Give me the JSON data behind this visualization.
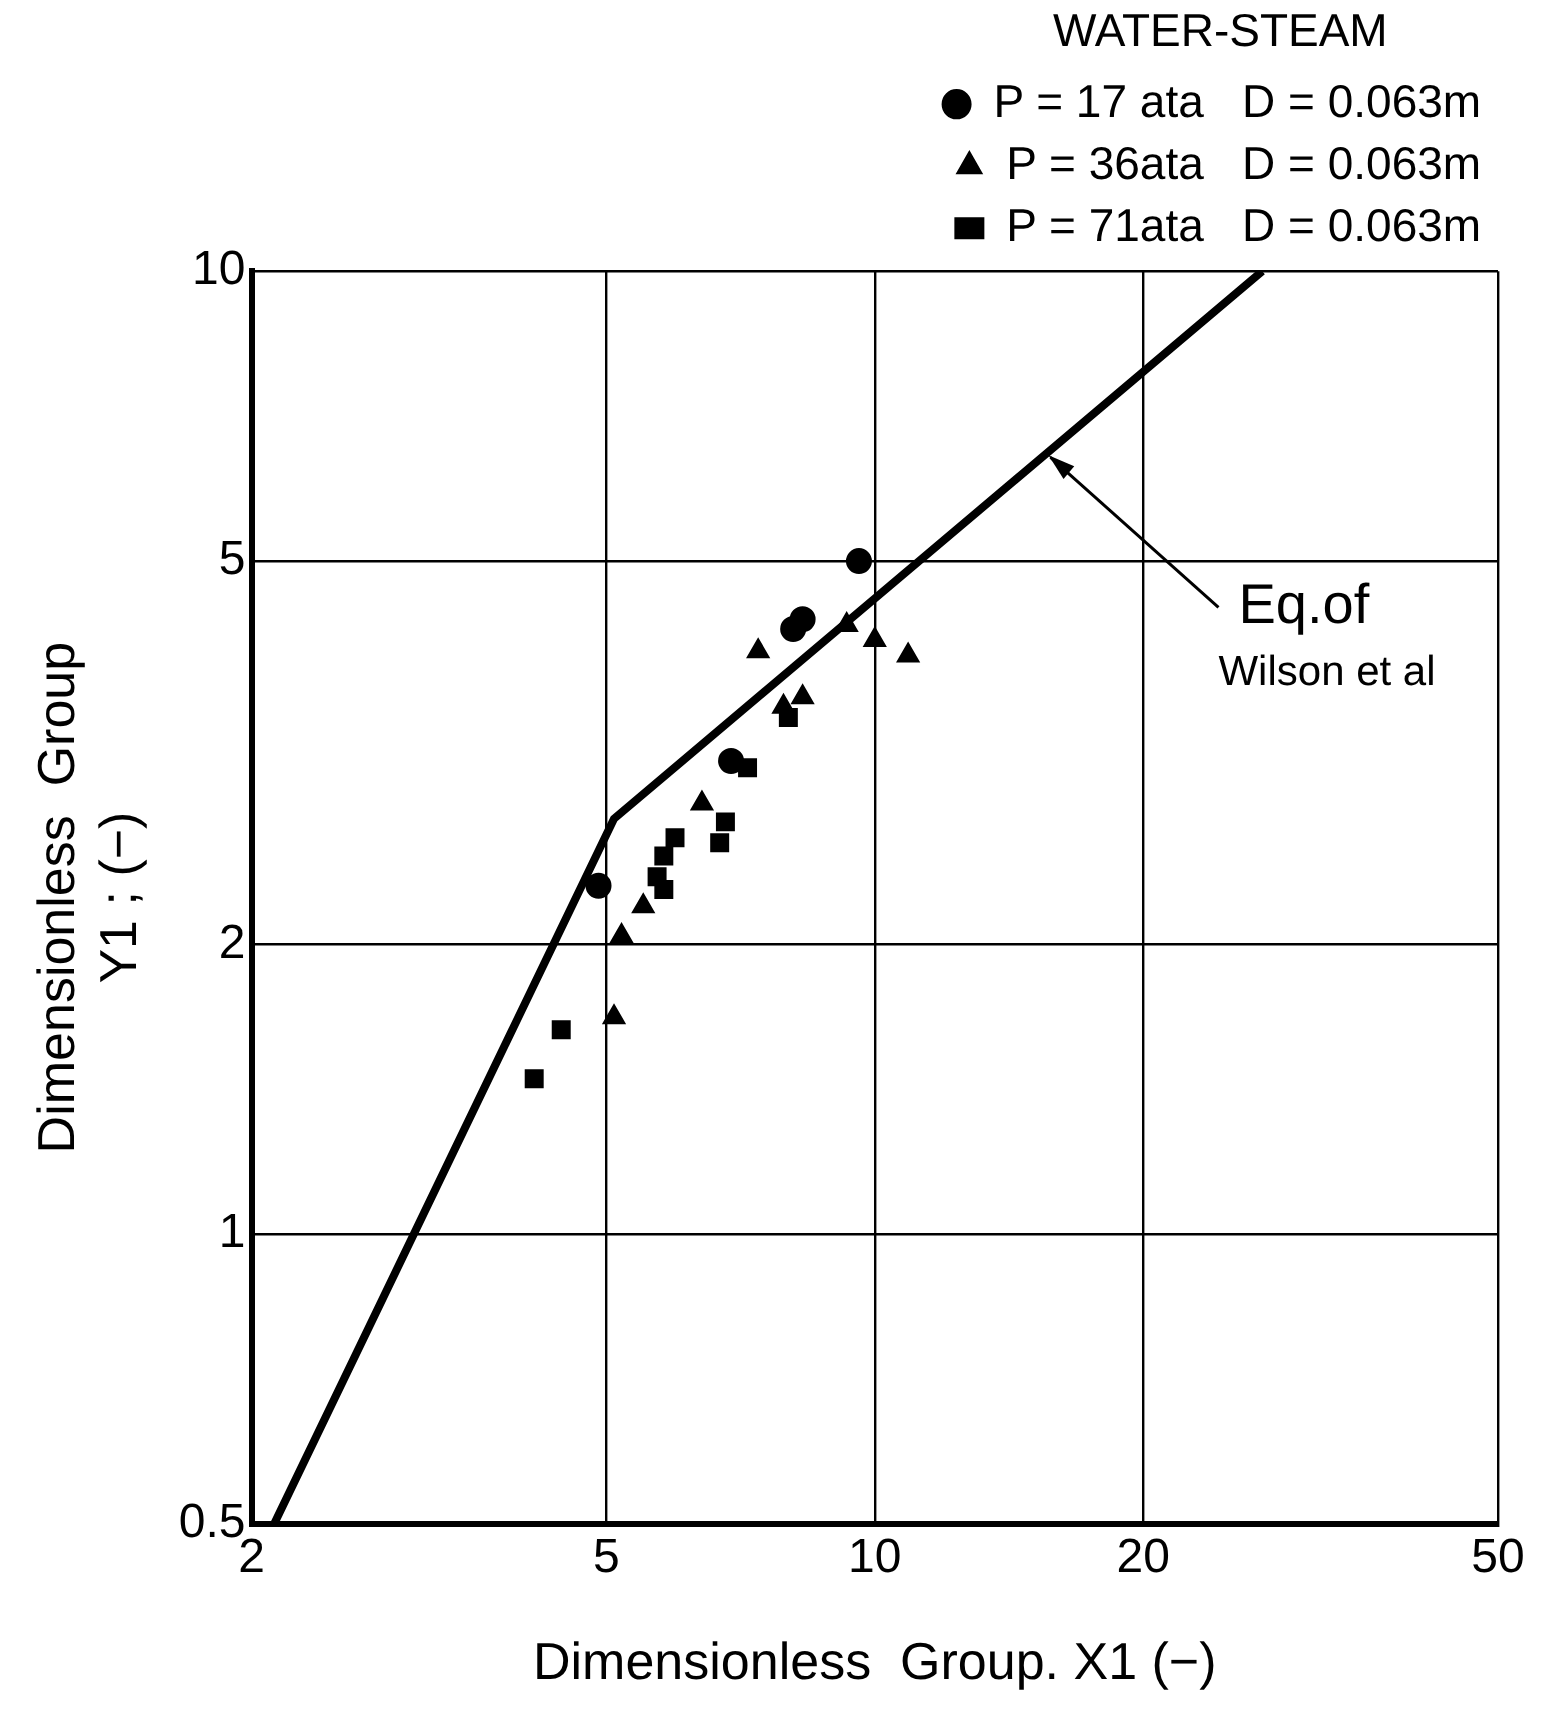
{
  "chart_data": {
    "type": "scatter",
    "legend_title": "WATER-STEAM",
    "xlabel": "Dimensionless  Group. X1 (−)",
    "ylabel": "Dimensionless  Group\nY1 ; (−)",
    "log": "xy",
    "grid": true,
    "legend": "top right",
    "xlim": [
      2,
      50
    ],
    "xticks": [
      2,
      5,
      10,
      20,
      50
    ],
    "ylim": [
      0.5,
      10
    ],
    "yticks": [
      0.5,
      1,
      2,
      5,
      10
    ],
    "annotations": [
      {
        "text": "Eq.of Wilson et al",
        "x": 15.5,
        "y": 6.5
      }
    ],
    "series": [
      {
        "name": "P = 17 ata   D = 0.063m",
        "color": "#000000",
        "marker": "circle",
        "x": [
          9.6,
          8.1,
          8.3,
          6.9,
          4.9
        ],
        "values": [
          5.0,
          4.25,
          4.35,
          3.1,
          2.3
        ]
      },
      {
        "name": "P = 36ata   D = 0.063m",
        "color": "#000000",
        "marker": "triangle",
        "x": [
          7.4,
          9.3,
          10.0,
          10.9,
          8.3,
          7.9,
          6.4,
          5.5,
          5.2,
          5.1
        ],
        "values": [
          4.03,
          4.29,
          4.14,
          3.99,
          3.61,
          3.53,
          2.8,
          2.19,
          2.04,
          1.68
        ]
      },
      {
        "name": "P = 71ata   D = 0.063m",
        "color": "#000000",
        "marker": "square",
        "x": [
          8.0,
          7.2,
          6.8,
          6.7,
          5.97,
          5.8,
          5.7,
          5.8,
          4.45,
          4.15
        ],
        "values": [
          3.44,
          3.05,
          2.68,
          2.55,
          2.58,
          2.47,
          2.35,
          2.28,
          1.63,
          1.45
        ]
      },
      {
        "type": "line",
        "color": "#000000",
        "marker": "none",
        "x": [
          2.12,
          5.1,
          27.2
        ],
        "values": [
          0.5,
          2.7,
          10
        ]
      }
    ]
  }
}
